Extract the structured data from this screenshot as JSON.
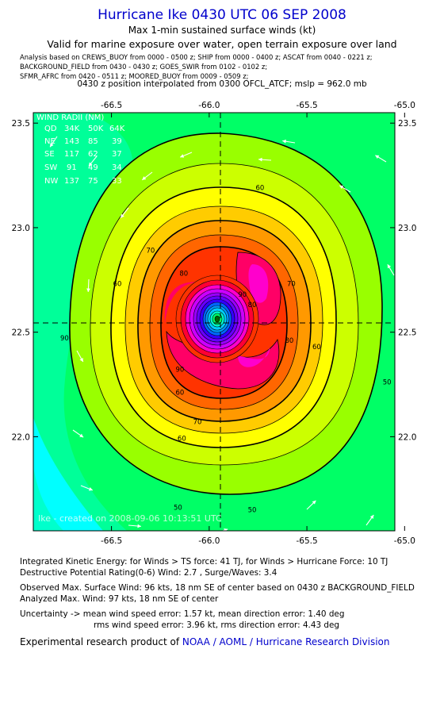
{
  "header": {
    "title": "Hurricane Ike 0430 UTC 06 SEP 2008",
    "subtitle": "Max 1-min sustained surface winds (kt)",
    "valid": "Valid for marine exposure over water, open terrain exposure over land",
    "analysis_lines": [
      "Analysis based on  CREWS_BUOY from 0000 - 0500 z;  SHIP from 0000 - 0400 z;  ASCAT from 0040 - 0221 z;",
      "BACKGROUND_FIELD from 0430 - 0430 z;  GOES_SWIR from 0102 - 0102 z;",
      "SFMR_AFRC from 0420 - 0511 z;  MOORED_BUOY from 0009 - 0509 z;"
    ],
    "position": "0430 z position interpolated from 0300 OFCL_ATCF; mslp = 962.0 mb"
  },
  "chart_data": {
    "type": "contour",
    "title": "Hurricane Ike 0430 UTC 06 SEP 2008",
    "variable": "Max 1-min sustained surface winds (kt)",
    "x_ticks": [
      "-66.5",
      "-66.0",
      "-65.5",
      "-65.0"
    ],
    "x_tick_values": [
      -66.5,
      -66.0,
      -65.5,
      -65.0
    ],
    "y_ticks": [
      "23.5",
      "23.0",
      "22.5",
      "22.0"
    ],
    "y_tick_values": [
      23.5,
      23.0,
      22.5,
      22.0
    ],
    "xlim": [
      -66.9,
      -65.05
    ],
    "ylim": [
      21.55,
      23.55
    ],
    "center": {
      "lon": -66.0,
      "lat": 22.55
    },
    "contour_labels": [
      {
        "text": "60",
        "lon": -65.74,
        "lat": 23.18
      },
      {
        "text": "70",
        "lon": -66.3,
        "lat": 22.88
      },
      {
        "text": "80",
        "lon": -66.13,
        "lat": 22.77
      },
      {
        "text": "60",
        "lon": -66.47,
        "lat": 22.72
      },
      {
        "text": "70",
        "lon": -65.58,
        "lat": 22.72
      },
      {
        "text": "90",
        "lon": -65.83,
        "lat": 22.67
      },
      {
        "text": "80",
        "lon": -65.78,
        "lat": 22.62
      },
      {
        "text": "90",
        "lon": -66.74,
        "lat": 22.46
      },
      {
        "text": "80",
        "lon": -65.59,
        "lat": 22.45
      },
      {
        "text": "60",
        "lon": -65.45,
        "lat": 22.42
      },
      {
        "text": "90",
        "lon": -66.15,
        "lat": 22.31
      },
      {
        "text": "60",
        "lon": -66.15,
        "lat": 22.2
      },
      {
        "text": "70",
        "lon": -66.06,
        "lat": 22.06
      },
      {
        "text": "60",
        "lon": -66.14,
        "lat": 21.98
      },
      {
        "text": "50",
        "lon": -65.09,
        "lat": 22.25
      },
      {
        "text": "50",
        "lon": -66.16,
        "lat": 21.65
      },
      {
        "text": "50",
        "lon": -65.78,
        "lat": 21.64
      }
    ],
    "wind_radii": {
      "title": "WIND RADII (NM)",
      "columns": [
        "QD",
        "34K",
        "50K",
        "64K"
      ],
      "rows": [
        [
          "NE",
          "143",
          "85",
          "39"
        ],
        [
          "SE",
          "117",
          "62",
          "37"
        ],
        [
          "SW",
          "91",
          "49",
          "34"
        ],
        [
          "NW",
          "137",
          "75",
          "33"
        ]
      ]
    },
    "credit": "Ike - created on 2008-09-06 10:13:51 UTC",
    "colors": {
      "levels": [
        "#00ffff",
        "#00ff99",
        "#00ff66",
        "#99ff00",
        "#ccff00",
        "#ffff00",
        "#ffcc00",
        "#ff9900",
        "#ff6600",
        "#ff3300",
        "#ff0066",
        "#ff00cc",
        "#cc00ff",
        "#6600cc",
        "#3300ff",
        "#0066ff",
        "#0099ff",
        "#00ccff"
      ]
    }
  },
  "stats": {
    "ike": "Integrated Kinetic Energy:  for Winds > TS force: 41 TJ,  for Winds > Hurricane Force: 10 TJ",
    "dpr": "Destructive Potential Rating(0-6)   Wind: 2.7 , Surge/Waves: 3.4",
    "obs": "Observed Max. Surface Wind: 96 kts, 18 nm SE of center based on 0430 z BACKGROUND_FIELD",
    "analyzed": "Analyzed Max. Wind: 97 kts, 18 nm SE of center",
    "unc1": "Uncertainty -> mean wind speed error: 1.57 kt,   mean direction error: 1.40 deg",
    "unc2": "rms wind speed error: 3.96 kt,   rms direction error: 4.43 deg"
  },
  "footer": {
    "prefix": "Experimental research product of ",
    "org": "NOAA / AOML / Hurricane Research Division"
  }
}
